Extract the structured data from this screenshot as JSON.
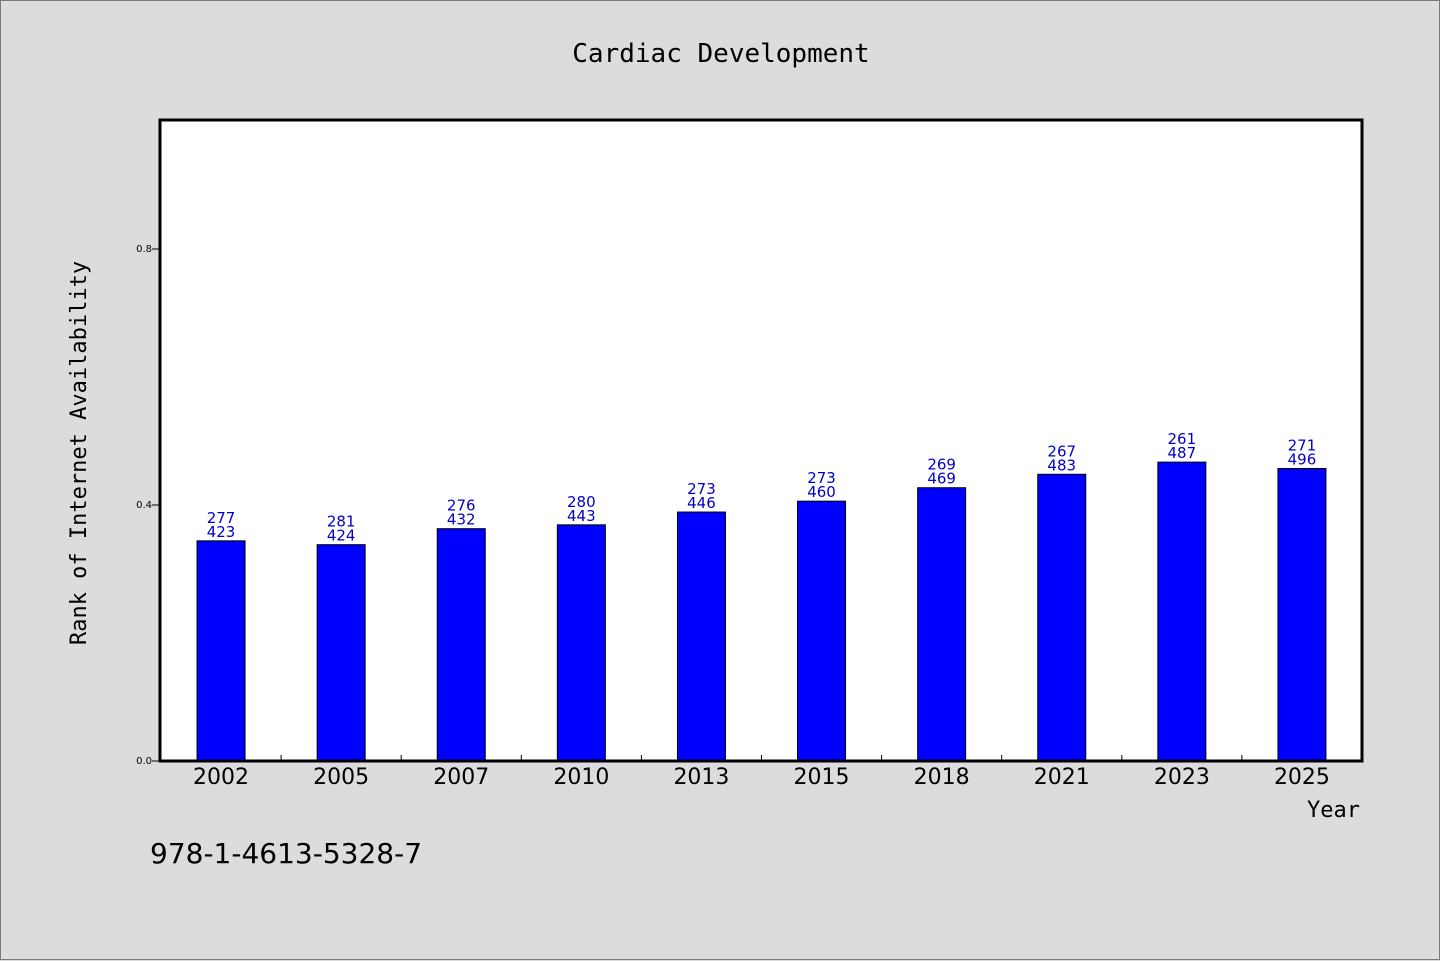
{
  "chart_data": {
    "type": "bar",
    "title": "Cardiac Development",
    "xlabel": "Year",
    "ylabel": "Rank of Internet Availability",
    "categories": [
      "2002",
      "2005",
      "2007",
      "2010",
      "2013",
      "2015",
      "2018",
      "2021",
      "2023",
      "2025"
    ],
    "values": [
      0.344,
      0.338,
      0.363,
      0.369,
      0.389,
      0.406,
      0.427,
      0.448,
      0.467,
      0.457
    ],
    "bar_labels": [
      [
        "277",
        "423"
      ],
      [
        "281",
        "424"
      ],
      [
        "276",
        "432"
      ],
      [
        "280",
        "443"
      ],
      [
        "273",
        "446"
      ],
      [
        "273",
        "460"
      ],
      [
        "269",
        "469"
      ],
      [
        "267",
        "483"
      ],
      [
        "261",
        "487"
      ],
      [
        "271",
        "496"
      ]
    ],
    "yticks": [
      "0.0",
      "0.4",
      "0.8"
    ],
    "ytick_values": [
      0.0,
      0.4,
      0.8
    ],
    "ylim": [
      0,
      1.0
    ],
    "grid": false,
    "bar_color": "#0000ff",
    "label_color": "#0000cc"
  },
  "footer": {
    "text": "978-1-4613-5328-7"
  },
  "colors": {
    "background": "#dcdcdc",
    "plot_background": "#ffffff"
  }
}
